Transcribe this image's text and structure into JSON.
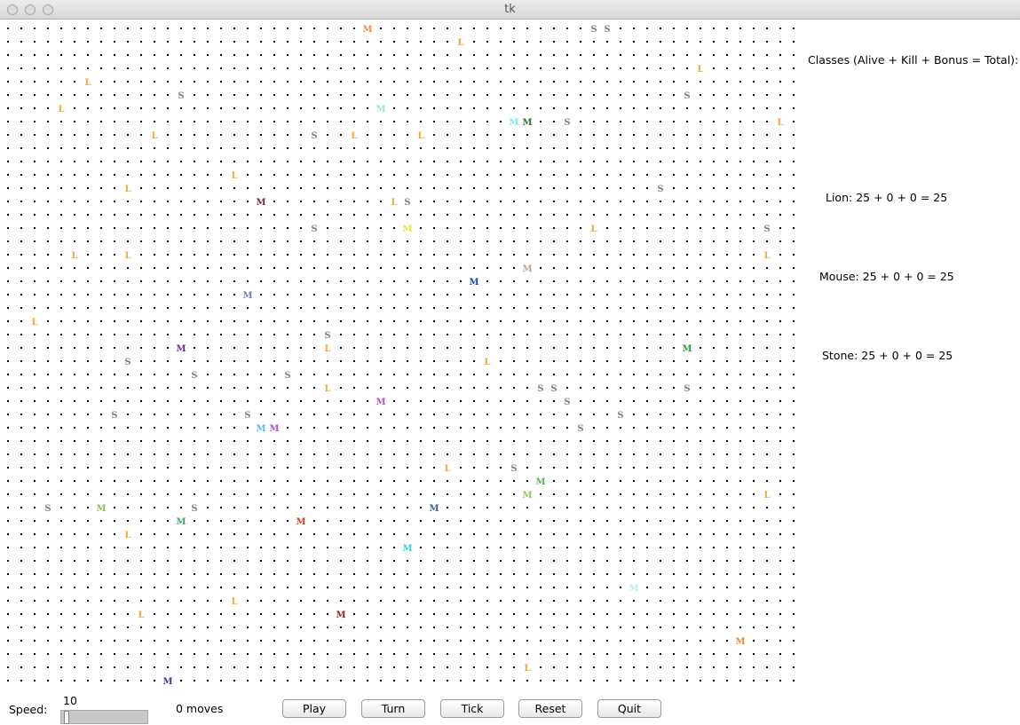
{
  "window": {
    "title": "tk"
  },
  "grid": {
    "cols": 60,
    "rows": 50,
    "dot_color": "#000000",
    "critters": [
      {
        "col": 27,
        "row": 0,
        "ch": "M",
        "color": "#e0915a"
      },
      {
        "col": 44,
        "row": 0,
        "ch": "S",
        "color": "#808080"
      },
      {
        "col": 45,
        "row": 0,
        "ch": "S",
        "color": "#808080"
      },
      {
        "col": 34,
        "row": 1,
        "ch": "L",
        "color": "#f0a830"
      },
      {
        "col": 52,
        "row": 3,
        "ch": "L",
        "color": "#f0a830"
      },
      {
        "col": 6,
        "row": 4,
        "ch": "L",
        "color": "#f0a830"
      },
      {
        "col": 13,
        "row": 5,
        "ch": "S",
        "color": "#808080"
      },
      {
        "col": 51,
        "row": 5,
        "ch": "S",
        "color": "#808080"
      },
      {
        "col": 4,
        "row": 6,
        "ch": "L",
        "color": "#f0a830"
      },
      {
        "col": 28,
        "row": 6,
        "ch": "M",
        "color": "#9ee8d8"
      },
      {
        "col": 38,
        "row": 7,
        "ch": "M",
        "color": "#7fe8e8"
      },
      {
        "col": 39,
        "row": 7,
        "ch": "M",
        "color": "#2f6f3f"
      },
      {
        "col": 42,
        "row": 7,
        "ch": "S",
        "color": "#808080"
      },
      {
        "col": 58,
        "row": 7,
        "ch": "L",
        "color": "#f0a830"
      },
      {
        "col": 11,
        "row": 8,
        "ch": "L",
        "color": "#f0a830"
      },
      {
        "col": 23,
        "row": 8,
        "ch": "S",
        "color": "#808080"
      },
      {
        "col": 26,
        "row": 8,
        "ch": "L",
        "color": "#f0a830"
      },
      {
        "col": 31,
        "row": 8,
        "ch": "L",
        "color": "#f0a830"
      },
      {
        "col": 17,
        "row": 11,
        "ch": "L",
        "color": "#f0a830"
      },
      {
        "col": 9,
        "row": 12,
        "ch": "L",
        "color": "#f0a830"
      },
      {
        "col": 49,
        "row": 12,
        "ch": "S",
        "color": "#808080"
      },
      {
        "col": 19,
        "row": 13,
        "ch": "M",
        "color": "#6a2a4a"
      },
      {
        "col": 29,
        "row": 13,
        "ch": "L",
        "color": "#f0a830"
      },
      {
        "col": 30,
        "row": 13,
        "ch": "S",
        "color": "#808080"
      },
      {
        "col": 23,
        "row": 15,
        "ch": "S",
        "color": "#808080"
      },
      {
        "col": 30,
        "row": 15,
        "ch": "M",
        "color": "#e8e040"
      },
      {
        "col": 44,
        "row": 15,
        "ch": "L",
        "color": "#f0a830"
      },
      {
        "col": 57,
        "row": 15,
        "ch": "S",
        "color": "#808080"
      },
      {
        "col": 5,
        "row": 17,
        "ch": "L",
        "color": "#f0a830"
      },
      {
        "col": 9,
        "row": 17,
        "ch": "L",
        "color": "#f0a830"
      },
      {
        "col": 57,
        "row": 17,
        "ch": "L",
        "color": "#f0a830"
      },
      {
        "col": 39,
        "row": 18,
        "ch": "M",
        "color": "#c8a080"
      },
      {
        "col": 35,
        "row": 19,
        "ch": "M",
        "color": "#1f3fbf"
      },
      {
        "col": 18,
        "row": 20,
        "ch": "M",
        "color": "#6a7fc0"
      },
      {
        "col": 2,
        "row": 22,
        "ch": "L",
        "color": "#f0a830"
      },
      {
        "col": 24,
        "row": 23,
        "ch": "S",
        "color": "#808080"
      },
      {
        "col": 13,
        "row": 24,
        "ch": "M",
        "color": "#6a2aa0"
      },
      {
        "col": 24,
        "row": 24,
        "ch": "L",
        "color": "#f0a830"
      },
      {
        "col": 51,
        "row": 24,
        "ch": "M",
        "color": "#2a9f3a"
      },
      {
        "col": 9,
        "row": 25,
        "ch": "S",
        "color": "#808080"
      },
      {
        "col": 36,
        "row": 25,
        "ch": "L",
        "color": "#f0a830"
      },
      {
        "col": 14,
        "row": 26,
        "ch": "S",
        "color": "#808080"
      },
      {
        "col": 21,
        "row": 26,
        "ch": "S",
        "color": "#808080"
      },
      {
        "col": 24,
        "row": 27,
        "ch": "L",
        "color": "#f0a830"
      },
      {
        "col": 40,
        "row": 27,
        "ch": "S",
        "color": "#808080"
      },
      {
        "col": 41,
        "row": 27,
        "ch": "S",
        "color": "#808080"
      },
      {
        "col": 51,
        "row": 27,
        "ch": "S",
        "color": "#808080"
      },
      {
        "col": 28,
        "row": 28,
        "ch": "M",
        "color": "#b050c0"
      },
      {
        "col": 42,
        "row": 28,
        "ch": "S",
        "color": "#808080"
      },
      {
        "col": 8,
        "row": 29,
        "ch": "S",
        "color": "#808080"
      },
      {
        "col": 18,
        "row": 29,
        "ch": "S",
        "color": "#808080"
      },
      {
        "col": 46,
        "row": 29,
        "ch": "S",
        "color": "#808080"
      },
      {
        "col": 19,
        "row": 30,
        "ch": "M",
        "color": "#60b8e0"
      },
      {
        "col": 20,
        "row": 30,
        "ch": "M",
        "color": "#b050e0"
      },
      {
        "col": 43,
        "row": 30,
        "ch": "S",
        "color": "#808080"
      },
      {
        "col": 33,
        "row": 33,
        "ch": "L",
        "color": "#f0a830"
      },
      {
        "col": 38,
        "row": 33,
        "ch": "S",
        "color": "#808080"
      },
      {
        "col": 40,
        "row": 34,
        "ch": "M",
        "color": "#4ac040"
      },
      {
        "col": 39,
        "row": 35,
        "ch": "M",
        "color": "#8ad060"
      },
      {
        "col": 57,
        "row": 35,
        "ch": "L",
        "color": "#f0a830"
      },
      {
        "col": 3,
        "row": 36,
        "ch": "S",
        "color": "#808080"
      },
      {
        "col": 7,
        "row": 36,
        "ch": "M",
        "color": "#90c050"
      },
      {
        "col": 14,
        "row": 36,
        "ch": "S",
        "color": "#808080"
      },
      {
        "col": 32,
        "row": 36,
        "ch": "M",
        "color": "#3a5f9f"
      },
      {
        "col": 13,
        "row": 37,
        "ch": "M",
        "color": "#40a870"
      },
      {
        "col": 22,
        "row": 37,
        "ch": "M",
        "color": "#d04020"
      },
      {
        "col": 9,
        "row": 38,
        "ch": "L",
        "color": "#f0a830"
      },
      {
        "col": 30,
        "row": 39,
        "ch": "M",
        "color": "#30d8c8"
      },
      {
        "col": 47,
        "row": 42,
        "ch": "M",
        "color": "#b8ecf0"
      },
      {
        "col": 17,
        "row": 43,
        "ch": "L",
        "color": "#f0a830"
      },
      {
        "col": 10,
        "row": 44,
        "ch": "L",
        "color": "#f0a830"
      },
      {
        "col": 25,
        "row": 44,
        "ch": "M",
        "color": "#a02010"
      },
      {
        "col": 55,
        "row": 46,
        "ch": "M",
        "color": "#e09030"
      },
      {
        "col": 39,
        "row": 48,
        "ch": "L",
        "color": "#f0a830"
      },
      {
        "col": 12,
        "row": 49,
        "ch": "M",
        "color": "#3a3a9f"
      }
    ]
  },
  "panel": {
    "header": "Classes (Alive + Kill + Bonus = Total):",
    "classes": [
      {
        "label": "Lion: 25 + 0 + 0 = 25"
      },
      {
        "label": "Mouse: 25 + 0 + 0 = 25"
      },
      {
        "label": "Stone: 25 + 0 + 0 = 25"
      }
    ]
  },
  "controls": {
    "speed_label": "Speed:",
    "speed_value": "10",
    "speed_fraction": 0.0,
    "moves": "0 moves",
    "buttons": {
      "play": "Play",
      "turn": "Turn",
      "tick": "Tick",
      "reset": "Reset",
      "quit": "Quit"
    }
  }
}
